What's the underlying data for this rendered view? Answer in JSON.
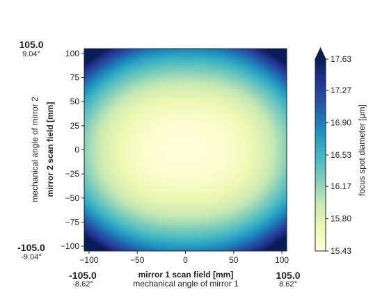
{
  "chart_data": {
    "type": "heatmap",
    "xlabel": "mirror 1 scan field [mm]",
    "xlabel_secondary": "mechanical angle of mirror 1",
    "ylabel": "mirror 2 scan field [mm]",
    "ylabel_secondary": "mechanical angle of mirror 2",
    "xlim": [
      -105,
      105
    ],
    "ylim": [
      -105,
      105
    ],
    "x_ticks": [
      -100,
      -50,
      0,
      50,
      100
    ],
    "y_ticks": [
      -100,
      -75,
      -50,
      -25,
      0,
      25,
      50,
      75,
      100
    ],
    "x_tick_labels": [
      "−100",
      "−50",
      "0",
      "50",
      "100"
    ],
    "y_tick_labels": [
      "−100",
      "−75",
      "−50",
      "−25",
      "0",
      "25",
      "50",
      "75",
      "100"
    ],
    "corners": {
      "x_min": {
        "value": "-105.0",
        "angle": "-8.62°"
      },
      "x_max": {
        "value": "105.0",
        "angle": "8.62°"
      },
      "y_min": {
        "value": "-105.0",
        "angle": "-9.04°"
      },
      "y_max": {
        "value": "105.0",
        "angle": "9.04°"
      }
    },
    "colorbar": {
      "label": "focus spot diameter [μm]",
      "min": 15.43,
      "max": 17.63,
      "ticks": [
        15.43,
        15.8,
        16.17,
        16.53,
        16.9,
        17.27,
        17.63
      ],
      "tick_labels": [
        "15.43",
        "15.80",
        "16.17",
        "16.53",
        "16.90",
        "17.27",
        "17.63"
      ],
      "extend": "max",
      "colormap": "YlGnBu",
      "colors": [
        "#ffffd9",
        "#edf8b1",
        "#c7e9b4",
        "#7fcdbb",
        "#41b6c4",
        "#1d91c0",
        "#225ea8",
        "#253494",
        "#081d58"
      ]
    },
    "grid": false,
    "field_summary": {
      "center_value": 15.43,
      "max_value": 17.63,
      "x_range_field": 0.8,
      "y_range_field": 1.45
    }
  }
}
